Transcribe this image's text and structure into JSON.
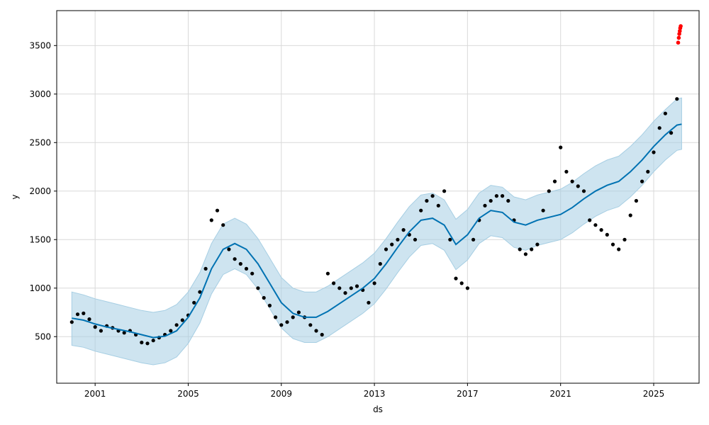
{
  "chart_data": {
    "type": "line",
    "title": "",
    "xlabel": "ds",
    "ylabel": "y",
    "xlim": [
      1999.35,
      2026.95
    ],
    "ylim": [
      20,
      3860
    ],
    "grid": true,
    "x_ticks": [
      2001,
      2005,
      2009,
      2013,
      2017,
      2021,
      2025
    ],
    "x_tick_labels": [
      "2001",
      "2005",
      "2009",
      "2013",
      "2017",
      "2021",
      "2025"
    ],
    "y_ticks": [
      500,
      1000,
      1500,
      2000,
      2500,
      3000,
      3500
    ],
    "y_tick_labels": [
      "500",
      "1000",
      "1500",
      "2000",
      "2500",
      "3000",
      "3500"
    ],
    "colors": {
      "forecast_line": "#0072B2",
      "interval_fill": "#A6CEE3",
      "observed_points": "#000000",
      "future_points": "#FF0000",
      "grid": "#d9d9d9"
    },
    "series": [
      {
        "role": "forecast_yhat",
        "style": "line",
        "x": [
          2000.0,
          2000.5,
          2001.0,
          2001.5,
          2002.0,
          2002.5,
          2003.0,
          2003.5,
          2004.0,
          2004.5,
          2005.0,
          2005.5,
          2006.0,
          2006.5,
          2007.0,
          2007.5,
          2008.0,
          2008.5,
          2009.0,
          2009.5,
          2010.0,
          2010.5,
          2011.0,
          2011.5,
          2012.0,
          2012.5,
          2013.0,
          2013.5,
          2014.0,
          2014.5,
          2015.0,
          2015.5,
          2016.0,
          2016.5,
          2017.0,
          2017.5,
          2018.0,
          2018.5,
          2019.0,
          2019.5,
          2020.0,
          2020.5,
          2021.0,
          2021.5,
          2022.0,
          2022.5,
          2023.0,
          2023.5,
          2024.0,
          2024.5,
          2025.0,
          2025.5,
          2026.0,
          2026.2
        ],
        "y": [
          690,
          670,
          630,
          600,
          575,
          550,
          520,
          490,
          505,
          560,
          700,
          900,
          1200,
          1400,
          1460,
          1400,
          1250,
          1050,
          850,
          740,
          700,
          700,
          760,
          840,
          920,
          1000,
          1100,
          1250,
          1420,
          1580,
          1700,
          1720,
          1650,
          1450,
          1550,
          1720,
          1800,
          1780,
          1680,
          1650,
          1700,
          1730,
          1760,
          1830,
          1920,
          2000,
          2060,
          2100,
          2200,
          2320,
          2460,
          2580,
          2680,
          2690
        ]
      },
      {
        "role": "forecast_upper",
        "style": "band",
        "x": [
          2000.0,
          2000.5,
          2001.0,
          2001.5,
          2002.0,
          2002.5,
          2003.0,
          2003.5,
          2004.0,
          2004.5,
          2005.0,
          2005.5,
          2006.0,
          2006.5,
          2007.0,
          2007.5,
          2008.0,
          2008.5,
          2009.0,
          2009.5,
          2010.0,
          2010.5,
          2011.0,
          2011.5,
          2012.0,
          2012.5,
          2013.0,
          2013.5,
          2014.0,
          2014.5,
          2015.0,
          2015.5,
          2016.0,
          2016.5,
          2017.0,
          2017.5,
          2018.0,
          2018.5,
          2019.0,
          2019.5,
          2020.0,
          2020.5,
          2021.0,
          2021.5,
          2022.0,
          2022.5,
          2023.0,
          2023.5,
          2024.0,
          2024.5,
          2025.0,
          2025.5,
          2026.0,
          2026.2
        ],
        "y": [
          960,
          930,
          890,
          860,
          830,
          800,
          770,
          750,
          770,
          830,
          960,
          1160,
          1460,
          1660,
          1720,
          1660,
          1510,
          1310,
          1110,
          1000,
          960,
          960,
          1020,
          1100,
          1180,
          1260,
          1360,
          1510,
          1680,
          1840,
          1960,
          1980,
          1910,
          1710,
          1810,
          1980,
          2060,
          2040,
          1940,
          1910,
          1960,
          1990,
          2020,
          2090,
          2180,
          2260,
          2320,
          2360,
          2460,
          2580,
          2720,
          2840,
          2950,
          2960
        ]
      },
      {
        "role": "forecast_lower",
        "style": "band",
        "x": [
          2000.0,
          2000.5,
          2001.0,
          2001.5,
          2002.0,
          2002.5,
          2003.0,
          2003.5,
          2004.0,
          2004.5,
          2005.0,
          2005.5,
          2006.0,
          2006.5,
          2007.0,
          2007.5,
          2008.0,
          2008.5,
          2009.0,
          2009.5,
          2010.0,
          2010.5,
          2011.0,
          2011.5,
          2012.0,
          2012.5,
          2013.0,
          2013.5,
          2014.0,
          2014.5,
          2015.0,
          2015.5,
          2016.0,
          2016.5,
          2017.0,
          2017.5,
          2018.0,
          2018.5,
          2019.0,
          2019.5,
          2020.0,
          2020.5,
          2021.0,
          2021.5,
          2022.0,
          2022.5,
          2023.0,
          2023.5,
          2024.0,
          2024.5,
          2025.0,
          2025.5,
          2026.0,
          2026.2
        ],
        "y": [
          410,
          390,
          350,
          320,
          290,
          260,
          230,
          210,
          230,
          290,
          430,
          640,
          940,
          1140,
          1200,
          1140,
          990,
          790,
          590,
          480,
          440,
          440,
          500,
          580,
          660,
          740,
          840,
          990,
          1160,
          1320,
          1440,
          1460,
          1390,
          1190,
          1290,
          1460,
          1540,
          1520,
          1420,
          1390,
          1440,
          1470,
          1500,
          1570,
          1660,
          1740,
          1800,
          1840,
          1940,
          2060,
          2200,
          2320,
          2420,
          2430
        ]
      },
      {
        "role": "observed",
        "style": "scatter",
        "x": [
          2000.0,
          2000.25,
          2000.5,
          2000.75,
          2001.0,
          2001.25,
          2001.5,
          2001.75,
          2002.0,
          2002.25,
          2002.5,
          2002.75,
          2003.0,
          2003.25,
          2003.5,
          2003.75,
          2004.0,
          2004.25,
          2004.5,
          2004.75,
          2005.0,
          2005.25,
          2005.5,
          2005.75,
          2006.0,
          2006.25,
          2006.5,
          2006.75,
          2007.0,
          2007.25,
          2007.5,
          2007.75,
          2008.0,
          2008.25,
          2008.5,
          2008.75,
          2009.0,
          2009.25,
          2009.5,
          2009.75,
          2010.0,
          2010.25,
          2010.5,
          2010.75,
          2011.0,
          2011.25,
          2011.5,
          2011.75,
          2012.0,
          2012.25,
          2012.5,
          2012.75,
          2013.0,
          2013.25,
          2013.5,
          2013.75,
          2014.0,
          2014.25,
          2014.5,
          2014.75,
          2015.0,
          2015.25,
          2015.5,
          2015.75,
          2016.0,
          2016.25,
          2016.5,
          2016.75,
          2017.0,
          2017.25,
          2017.5,
          2017.75,
          2018.0,
          2018.25,
          2018.5,
          2018.75,
          2019.0,
          2019.25,
          2019.5,
          2019.75,
          2020.0,
          2020.25,
          2020.5,
          2020.75,
          2021.0,
          2021.25,
          2021.5,
          2021.75,
          2022.0,
          2022.25,
          2022.5,
          2022.75,
          2023.0,
          2023.25,
          2023.5,
          2023.75,
          2024.0,
          2024.25,
          2024.5,
          2024.75,
          2025.0,
          2025.25,
          2025.5,
          2025.75,
          2026.0
        ],
        "y": [
          650,
          730,
          740,
          680,
          600,
          560,
          610,
          590,
          560,
          540,
          560,
          520,
          440,
          430,
          460,
          490,
          520,
          560,
          620,
          670,
          720,
          850,
          960,
          1200,
          1700,
          1800,
          1650,
          1400,
          1300,
          1250,
          1200,
          1150,
          1000,
          900,
          820,
          700,
          620,
          650,
          700,
          750,
          700,
          620,
          560,
          520,
          1150,
          1050,
          1000,
          950,
          1000,
          1020,
          980,
          850,
          1050,
          1250,
          1400,
          1450,
          1500,
          1600,
          1550,
          1500,
          1800,
          1900,
          1950,
          1850,
          2000,
          1500,
          1100,
          1050,
          1000,
          1500,
          1700,
          1850,
          1900,
          1950,
          1950,
          1900,
          1700,
          1400,
          1350,
          1400,
          1450,
          1800,
          2000,
          2100,
          2450,
          2200,
          2100,
          2050,
          2000,
          1700,
          1650,
          1600,
          1550,
          1450,
          1400,
          1500,
          1750,
          1900,
          2100,
          2200,
          2400,
          2650,
          2800,
          2600,
          2950
        ],
        "color": "#000000"
      },
      {
        "role": "future_points",
        "style": "scatter",
        "x": [
          2026.05,
          2026.08,
          2026.1,
          2026.12,
          2026.14,
          2026.16
        ],
        "y": [
          3530,
          3580,
          3620,
          3650,
          3680,
          3700
        ],
        "color": "#FF0000"
      }
    ]
  }
}
